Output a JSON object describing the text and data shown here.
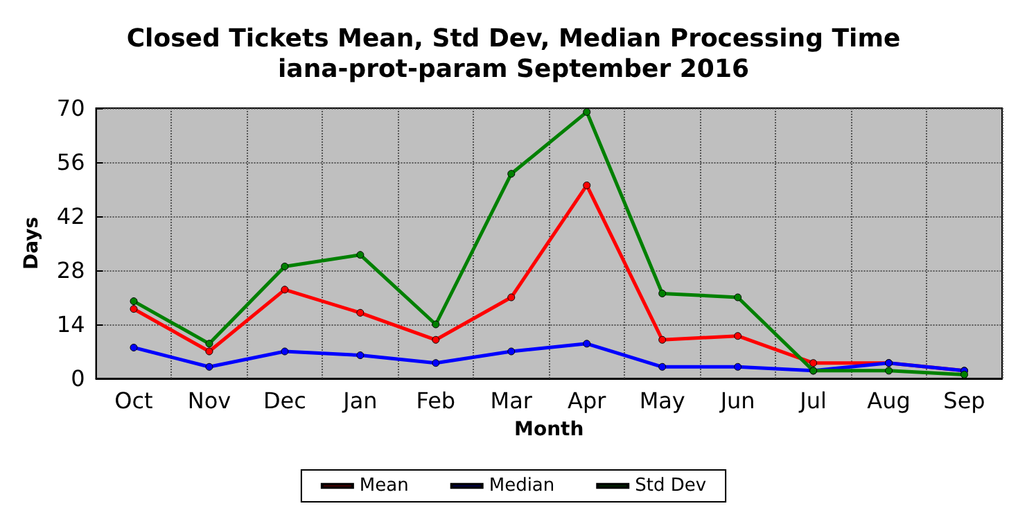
{
  "chart_data": {
    "type": "line",
    "title": "Closed Tickets Mean, Std Dev, Median Processing Time",
    "subtitle": "iana-prot-param September 2016",
    "xlabel": "Month",
    "ylabel": "Days",
    "categories": [
      "Oct",
      "Nov",
      "Dec",
      "Jan",
      "Feb",
      "Mar",
      "Apr",
      "May",
      "Jun",
      "Jul",
      "Aug",
      "Sep"
    ],
    "series": [
      {
        "name": "Mean",
        "color": "#ff0000",
        "values": [
          18,
          7,
          23,
          17,
          10,
          21,
          50,
          10,
          11,
          4,
          4,
          2
        ]
      },
      {
        "name": "Median",
        "color": "#0000ff",
        "values": [
          8,
          3,
          7,
          6,
          4,
          7,
          9,
          3,
          3,
          2,
          4,
          2
        ]
      },
      {
        "name": "Std Dev",
        "color": "#008000",
        "values": [
          20,
          9,
          29,
          32,
          14,
          53,
          69,
          22,
          21,
          2,
          2,
          1
        ]
      }
    ],
    "ylim": [
      0,
      70
    ],
    "yticks": [
      0,
      14,
      28,
      42,
      56,
      70
    ],
    "grid": true,
    "legend": "bottom",
    "marker": "circle",
    "line_style": "solid"
  }
}
